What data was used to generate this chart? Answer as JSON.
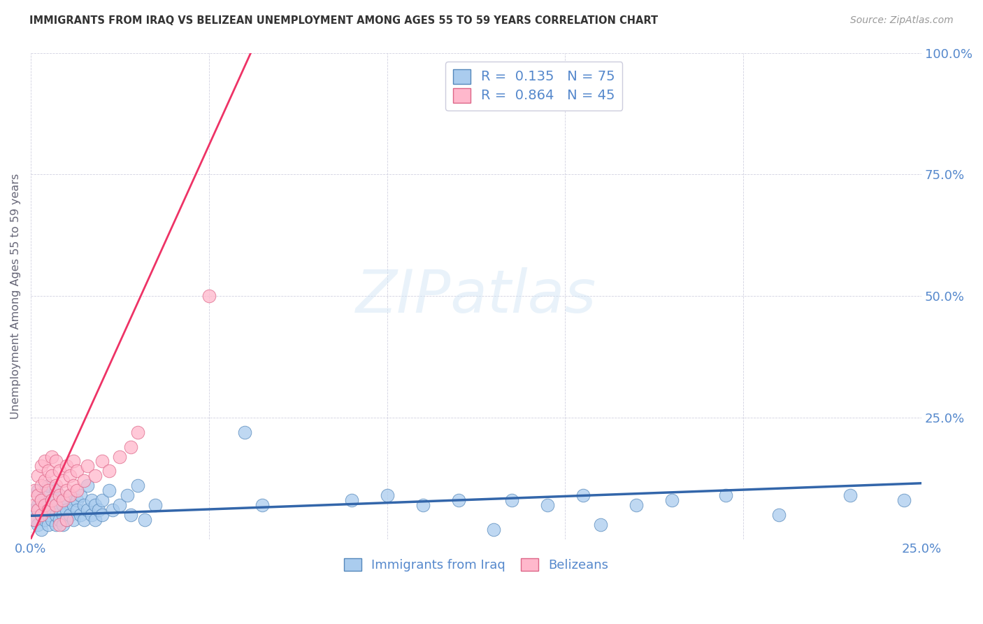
{
  "title": "IMMIGRANTS FROM IRAQ VS BELIZEAN UNEMPLOYMENT AMONG AGES 55 TO 59 YEARS CORRELATION CHART",
  "source": "Source: ZipAtlas.com",
  "ylabel": "Unemployment Among Ages 55 to 59 years",
  "xlim": [
    0.0,
    0.25
  ],
  "ylim": [
    0.0,
    1.0
  ],
  "xticks": [
    0.0,
    0.05,
    0.1,
    0.15,
    0.2,
    0.25
  ],
  "xticklabels": [
    "0.0%",
    "",
    "",
    "",
    "",
    "25.0%"
  ],
  "yticks": [
    0.0,
    0.25,
    0.5,
    0.75,
    1.0
  ],
  "yticklabels": [
    "",
    "25.0%",
    "50.0%",
    "75.0%",
    "100.0%"
  ],
  "title_color": "#333333",
  "source_color": "#999999",
  "tick_color": "#5588cc",
  "legend_R_iraq": "0.135",
  "legend_N_iraq": "75",
  "legend_R_belize": "0.864",
  "legend_N_belize": "45",
  "iraq_color": "#aaccee",
  "iraq_edge_color": "#5588bb",
  "iraq_line_color": "#3366aa",
  "belize_color": "#ffb8cc",
  "belize_edge_color": "#dd6688",
  "belize_line_color": "#ee3366",
  "iraq_scatter": [
    [
      0.001,
      0.04
    ],
    [
      0.001,
      0.06
    ],
    [
      0.002,
      0.03
    ],
    [
      0.002,
      0.07
    ],
    [
      0.002,
      0.1
    ],
    [
      0.003,
      0.05
    ],
    [
      0.003,
      0.08
    ],
    [
      0.003,
      0.02
    ],
    [
      0.004,
      0.04
    ],
    [
      0.004,
      0.09
    ],
    [
      0.004,
      0.06
    ],
    [
      0.005,
      0.03
    ],
    [
      0.005,
      0.07
    ],
    [
      0.005,
      0.11
    ],
    [
      0.005,
      0.05
    ],
    [
      0.006,
      0.04
    ],
    [
      0.006,
      0.08
    ],
    [
      0.006,
      0.06
    ],
    [
      0.007,
      0.03
    ],
    [
      0.007,
      0.07
    ],
    [
      0.007,
      0.1
    ],
    [
      0.007,
      0.05
    ],
    [
      0.008,
      0.04
    ],
    [
      0.008,
      0.09
    ],
    [
      0.008,
      0.06
    ],
    [
      0.009,
      0.03
    ],
    [
      0.009,
      0.07
    ],
    [
      0.009,
      0.05
    ],
    [
      0.01,
      0.08
    ],
    [
      0.01,
      0.04
    ],
    [
      0.01,
      0.06
    ],
    [
      0.011,
      0.09
    ],
    [
      0.011,
      0.05
    ],
    [
      0.012,
      0.07
    ],
    [
      0.012,
      0.04
    ],
    [
      0.013,
      0.08
    ],
    [
      0.013,
      0.06
    ],
    [
      0.014,
      0.05
    ],
    [
      0.014,
      0.09
    ],
    [
      0.015,
      0.07
    ],
    [
      0.015,
      0.04
    ],
    [
      0.016,
      0.11
    ],
    [
      0.016,
      0.06
    ],
    [
      0.017,
      0.05
    ],
    [
      0.017,
      0.08
    ],
    [
      0.018,
      0.04
    ],
    [
      0.018,
      0.07
    ],
    [
      0.019,
      0.06
    ],
    [
      0.02,
      0.08
    ],
    [
      0.02,
      0.05
    ],
    [
      0.022,
      0.1
    ],
    [
      0.023,
      0.06
    ],
    [
      0.025,
      0.07
    ],
    [
      0.027,
      0.09
    ],
    [
      0.028,
      0.05
    ],
    [
      0.03,
      0.11
    ],
    [
      0.032,
      0.04
    ],
    [
      0.035,
      0.07
    ],
    [
      0.06,
      0.22
    ],
    [
      0.065,
      0.07
    ],
    [
      0.09,
      0.08
    ],
    [
      0.1,
      0.09
    ],
    [
      0.11,
      0.07
    ],
    [
      0.12,
      0.08
    ],
    [
      0.13,
      0.02
    ],
    [
      0.135,
      0.08
    ],
    [
      0.145,
      0.07
    ],
    [
      0.155,
      0.09
    ],
    [
      0.16,
      0.03
    ],
    [
      0.17,
      0.07
    ],
    [
      0.18,
      0.08
    ],
    [
      0.195,
      0.09
    ],
    [
      0.21,
      0.05
    ],
    [
      0.23,
      0.09
    ],
    [
      0.245,
      0.08
    ]
  ],
  "belize_scatter": [
    [
      0.001,
      0.04
    ],
    [
      0.001,
      0.07
    ],
    [
      0.001,
      0.1
    ],
    [
      0.002,
      0.06
    ],
    [
      0.002,
      0.09
    ],
    [
      0.002,
      0.13
    ],
    [
      0.003,
      0.05
    ],
    [
      0.003,
      0.08
    ],
    [
      0.003,
      0.11
    ],
    [
      0.003,
      0.15
    ],
    [
      0.004,
      0.07
    ],
    [
      0.004,
      0.12
    ],
    [
      0.004,
      0.16
    ],
    [
      0.005,
      0.06
    ],
    [
      0.005,
      0.1
    ],
    [
      0.005,
      0.14
    ],
    [
      0.006,
      0.08
    ],
    [
      0.006,
      0.13
    ],
    [
      0.006,
      0.17
    ],
    [
      0.007,
      0.07
    ],
    [
      0.007,
      0.11
    ],
    [
      0.007,
      0.16
    ],
    [
      0.008,
      0.09
    ],
    [
      0.008,
      0.14
    ],
    [
      0.009,
      0.08
    ],
    [
      0.009,
      0.12
    ],
    [
      0.01,
      0.1
    ],
    [
      0.01,
      0.15
    ],
    [
      0.011,
      0.09
    ],
    [
      0.011,
      0.13
    ],
    [
      0.012,
      0.11
    ],
    [
      0.012,
      0.16
    ],
    [
      0.013,
      0.1
    ],
    [
      0.013,
      0.14
    ],
    [
      0.015,
      0.12
    ],
    [
      0.016,
      0.15
    ],
    [
      0.018,
      0.13
    ],
    [
      0.02,
      0.16
    ],
    [
      0.022,
      0.14
    ],
    [
      0.025,
      0.17
    ],
    [
      0.028,
      0.19
    ],
    [
      0.03,
      0.22
    ],
    [
      0.05,
      0.5
    ],
    [
      0.008,
      0.03
    ],
    [
      0.01,
      0.04
    ]
  ],
  "iraq_trendline": [
    [
      0.0,
      0.048
    ],
    [
      0.25,
      0.115
    ]
  ],
  "belize_trendline": [
    [
      0.0,
      0.0
    ],
    [
      0.063,
      1.02
    ]
  ]
}
